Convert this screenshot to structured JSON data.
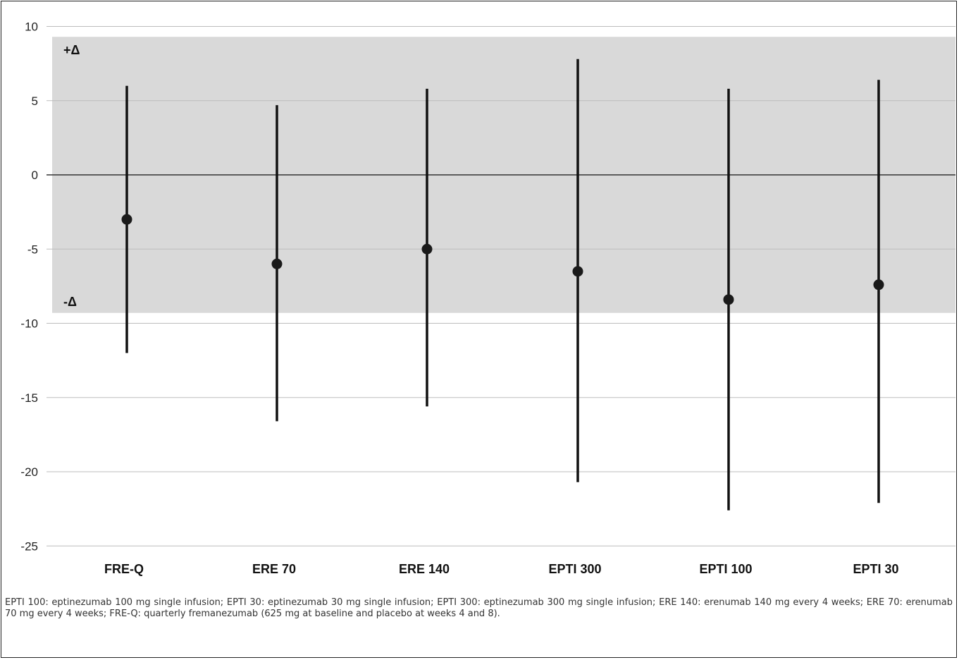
{
  "chart_data": {
    "type": "scatter",
    "subtype": "point-with-interval",
    "categories": [
      "FRE-Q",
      "ERE 70",
      "ERE 140",
      "EPTI 300",
      "EPTI 100",
      "EPTI 30"
    ],
    "points": [
      {
        "category": "FRE-Q",
        "value": -3,
        "lower": -12,
        "upper": 6
      },
      {
        "category": "ERE 70",
        "value": -6,
        "lower": -16.6,
        "upper": 4.7
      },
      {
        "category": "ERE 140",
        "value": -5,
        "lower": -15.6,
        "upper": 5.8
      },
      {
        "category": "EPTI 300",
        "value": -6.5,
        "lower": -20.7,
        "upper": 7.8
      },
      {
        "category": "EPTI 100",
        "value": -8.4,
        "lower": -22.6,
        "upper": 5.8
      },
      {
        "category": "EPTI 30",
        "value": -7.4,
        "lower": -22.1,
        "upper": 6.4
      }
    ],
    "ylim": [
      -25,
      10
    ],
    "yticks": [
      "10",
      "5",
      "0",
      "-5",
      "-10",
      "-15",
      "-20",
      "-25"
    ],
    "grid": true,
    "band": {
      "upper": 9.3,
      "lower": -9.3,
      "upper_label": "+Δ",
      "lower_label": "-Δ",
      "color": "#d9d9d9"
    },
    "title": "",
    "xlabel": "",
    "ylabel": ""
  },
  "caption": "EPTI 100: eptinezumab 100 mg single infusion; EPTI 30: eptinezumab 30 mg single infusion; EPTI 300: eptinezumab 300 mg single infusion; ERE 140: erenumab 140 mg every 4 weeks; ERE 70: erenumab 70 mg every 4 weeks; FRE-Q: quarterly fremanezumab (625 mg at baseline and placebo at weeks 4 and 8)."
}
